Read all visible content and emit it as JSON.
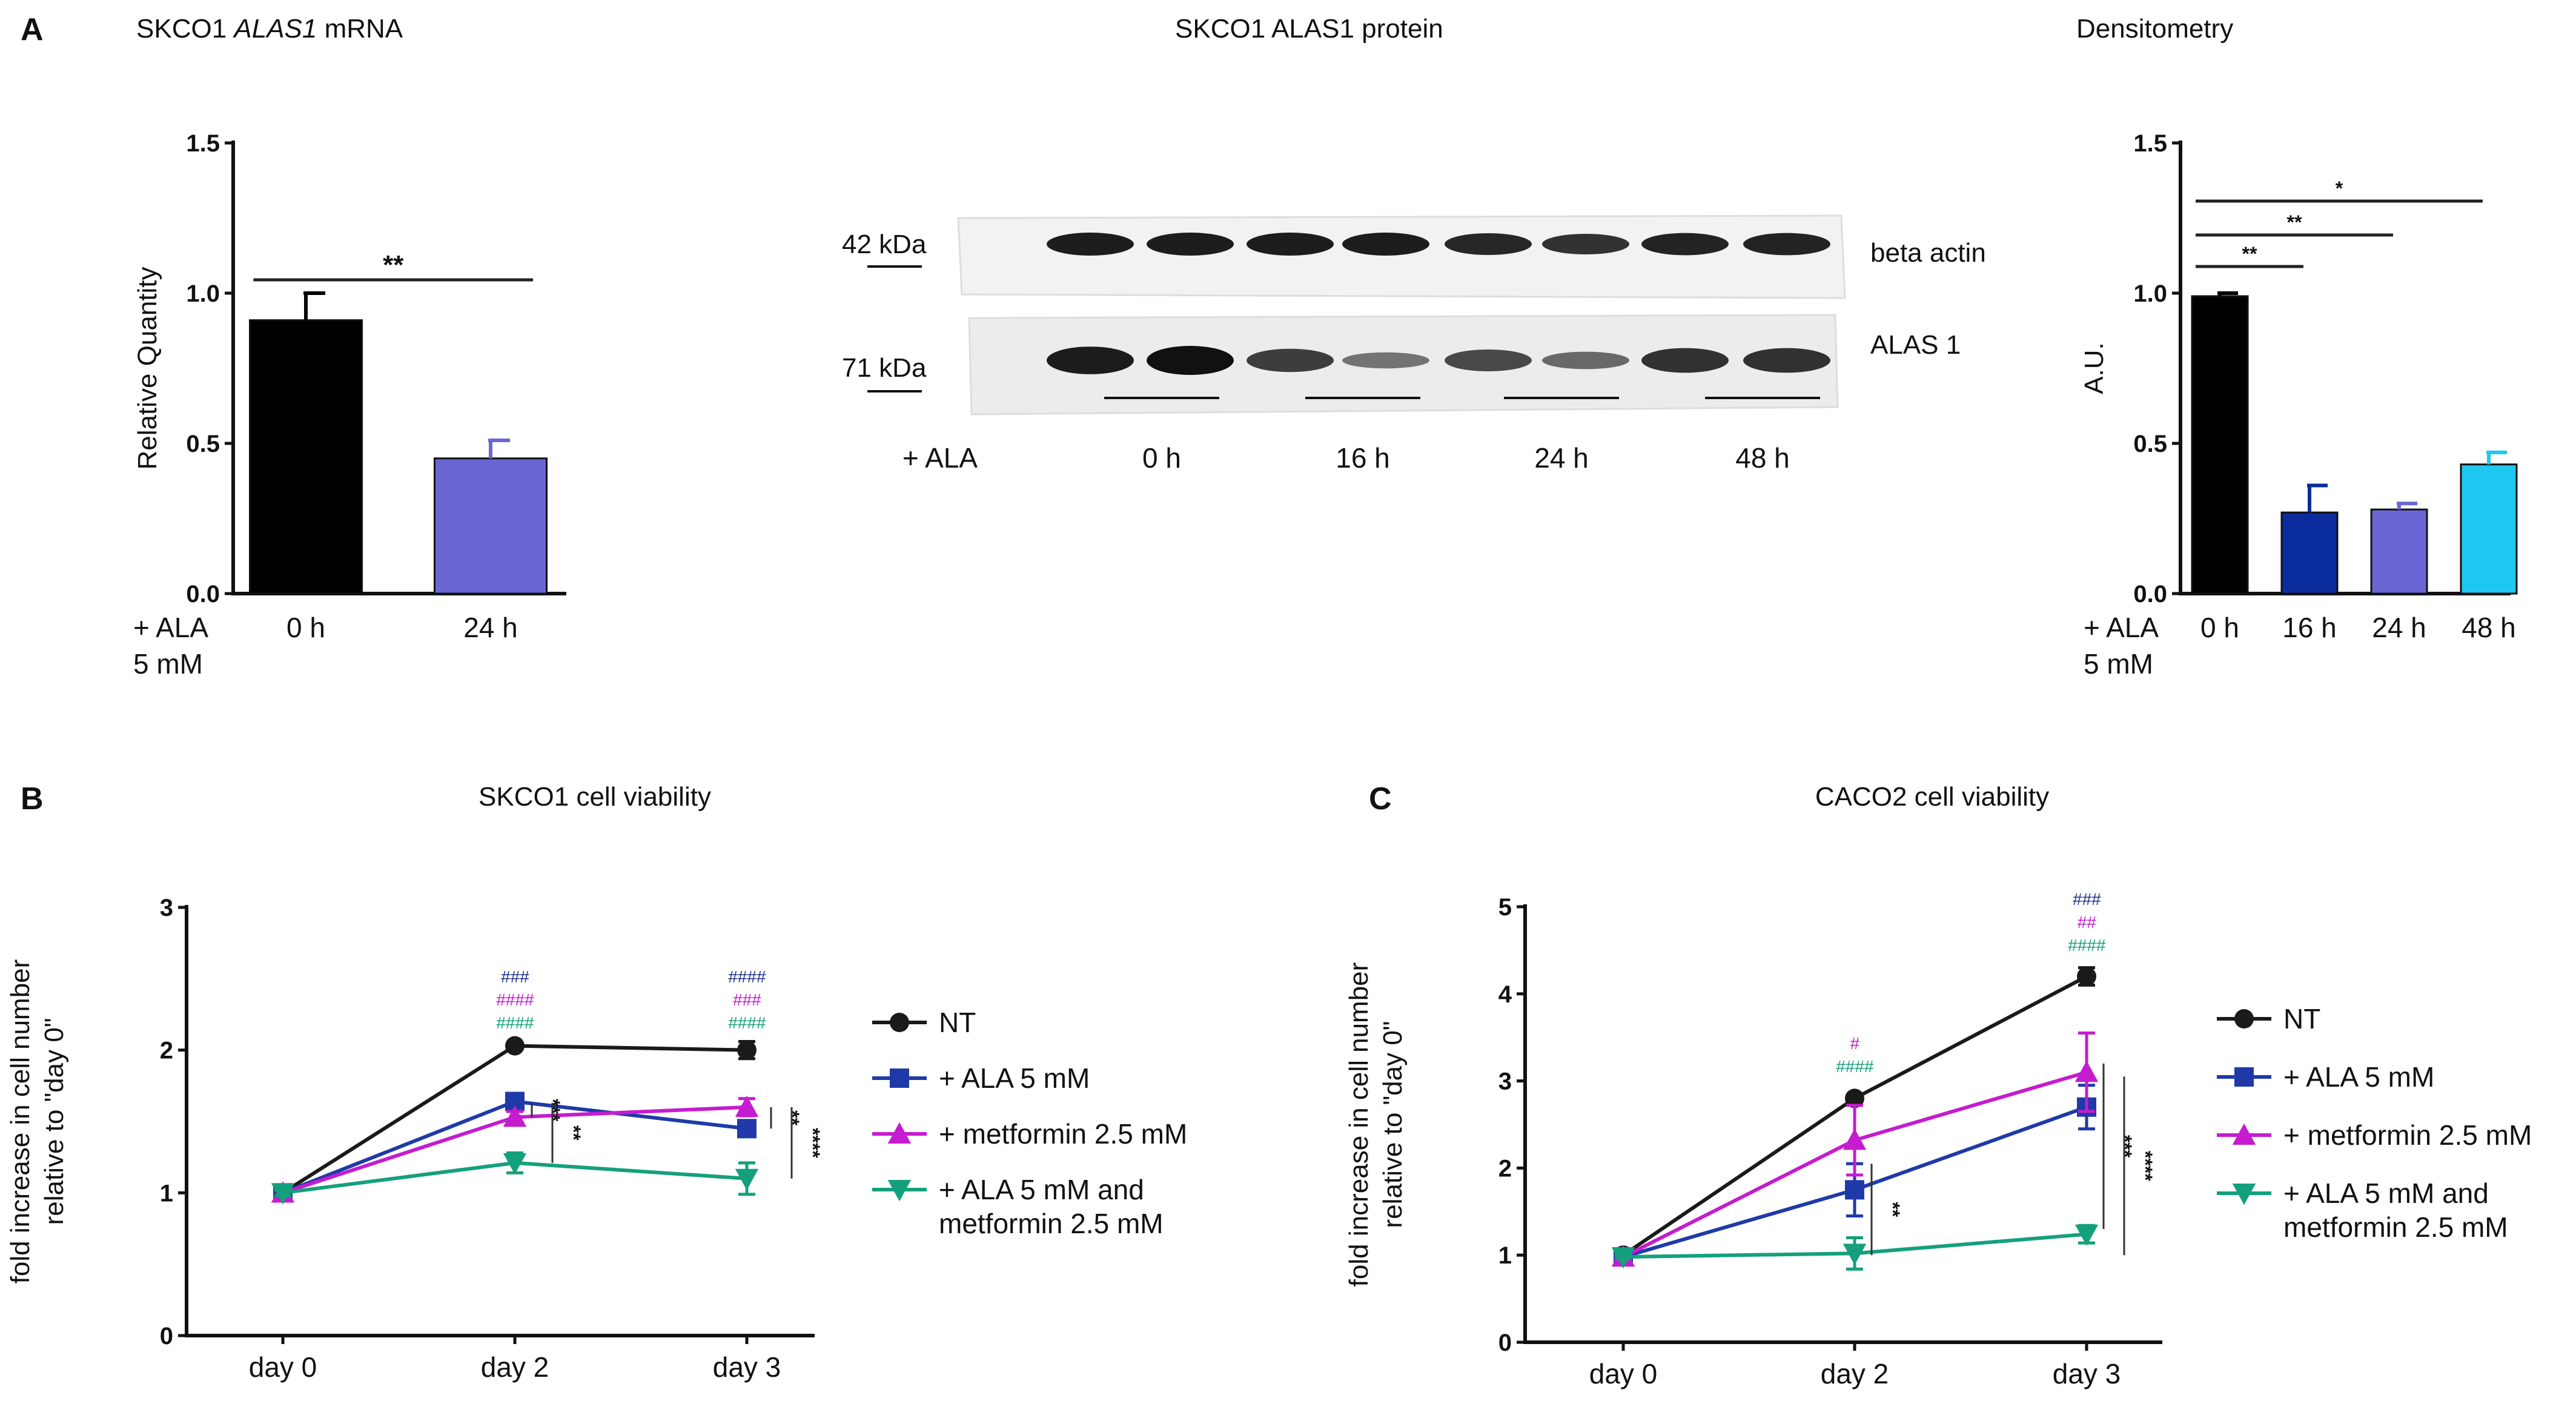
{
  "panels": {
    "A": "A",
    "B": "B",
    "C": "C"
  },
  "chart_data": [
    {
      "id": "A1",
      "type": "bar",
      "title_prefix": "SKCO1 ",
      "title_italic": "ALAS1",
      "title_suffix": " mRNA",
      "ylabel": "Relative Quantity",
      "ylim": [
        0,
        1.5
      ],
      "yticks": [
        "0.0",
        "0.5",
        "1.0",
        "1.5"
      ],
      "row_label": [
        "+ ALA",
        "5 mM"
      ],
      "categories": [
        "0 h",
        "24 h"
      ],
      "values": [
        0.91,
        0.45
      ],
      "errors": [
        0.09,
        0.06
      ],
      "colors": [
        "#000000",
        "#6a67d4"
      ],
      "significance": [
        {
          "pair": [
            0,
            1
          ],
          "label": "**"
        }
      ]
    },
    {
      "id": "A2",
      "type": "blot",
      "title": "SKCO1 ALAS1 protein",
      "markers": [
        "42 kDa",
        "71 kDa"
      ],
      "bands": [
        "beta actin",
        "ALAS 1"
      ],
      "row_label": "+ ALA",
      "lanes": [
        "0 h",
        "16 h",
        "24 h",
        "48 h"
      ],
      "actin_intensity": [
        0.95,
        0.95,
        0.95,
        0.95,
        0.9,
        0.85,
        0.92,
        0.92
      ],
      "alas_intensity": [
        0.95,
        1.0,
        0.8,
        0.55,
        0.75,
        0.6,
        0.85,
        0.85
      ]
    },
    {
      "id": "A3",
      "type": "bar",
      "title": "Densitometry",
      "ylabel": "A.U.",
      "ylim": [
        0,
        1.5
      ],
      "yticks": [
        "0.0",
        "0.5",
        "1.0",
        "1.5"
      ],
      "row_label": [
        "+ ALA",
        "5 mM"
      ],
      "categories": [
        "0 h",
        "16 h",
        "24 h",
        "48 h"
      ],
      "values": [
        0.99,
        0.27,
        0.28,
        0.43
      ],
      "errors": [
        0.01,
        0.09,
        0.02,
        0.04
      ],
      "colors": [
        "#000000",
        "#0a2c9c",
        "#6a67d4",
        "#1ec8f0"
      ],
      "significance": [
        {
          "pair": [
            0,
            1
          ],
          "label": "**"
        },
        {
          "pair": [
            0,
            2
          ],
          "label": "**"
        },
        {
          "pair": [
            0,
            3
          ],
          "label": "*"
        }
      ]
    },
    {
      "id": "B",
      "type": "line",
      "title": "SKCO1 cell viability",
      "ylabel": [
        "fold increase in cell number",
        "relative to \"day 0\""
      ],
      "ylim": [
        0,
        3
      ],
      "yticks": [
        "0",
        "1",
        "2",
        "3"
      ],
      "x": [
        "day 0",
        "day 2",
        "day 3"
      ],
      "series": [
        {
          "name": "NT",
          "values": [
            1.0,
            2.03,
            2.0
          ],
          "errors": [
            0.02,
            0.02,
            0.06
          ],
          "color": "#1a1a1a",
          "marker": "circle"
        },
        {
          "name": "+ ALA 5 mM",
          "values": [
            1.0,
            1.64,
            1.45
          ],
          "errors": [
            0.02,
            0.04,
            0.03
          ],
          "color": "#1f3aa8",
          "marker": "square"
        },
        {
          "name": "+ metformin 2.5 mM",
          "values": [
            1.0,
            1.53,
            1.6
          ],
          "errors": [
            0.02,
            0.04,
            0.06
          ],
          "color": "#c51ccf",
          "marker": "triangle-up"
        },
        {
          "name_lines": [
            "+ ALA 5 mM and",
            "metformin 2.5 mM"
          ],
          "values": [
            1.0,
            1.21,
            1.1
          ],
          "errors": [
            0.02,
            0.07,
            0.11
          ],
          "color": "#14a07c",
          "marker": "triangle-down"
        }
      ],
      "hash_labels": [
        {
          "x_index": 1,
          "lines": [
            "###",
            "####",
            "####"
          ]
        },
        {
          "x_index": 2,
          "lines": [
            "####",
            "###",
            "####"
          ]
        }
      ],
      "stars": [
        {
          "x_index": 1,
          "labels": [
            "***",
            "**"
          ]
        },
        {
          "x_index": 2,
          "labels": [
            "**",
            "****"
          ]
        }
      ]
    },
    {
      "id": "C",
      "type": "line",
      "title": "CACO2 cell viability",
      "ylabel": [
        "fold increase in cell number",
        "relative to \"day 0\""
      ],
      "ylim": [
        0,
        5
      ],
      "yticks": [
        "0",
        "1",
        "2",
        "3",
        "4",
        "5"
      ],
      "x": [
        "day 0",
        "day 2",
        "day 3"
      ],
      "series": [
        {
          "name": "NT",
          "values": [
            1.0,
            2.8,
            4.2
          ],
          "errors": [
            0.02,
            0.03,
            0.1
          ],
          "color": "#1a1a1a",
          "marker": "circle"
        },
        {
          "name": "+ ALA  5 mM",
          "values": [
            0.98,
            1.75,
            2.7
          ],
          "errors": [
            0.02,
            0.3,
            0.25
          ],
          "color": "#1f3aa8",
          "marker": "square"
        },
        {
          "name": "+ metformin 2.5 mM",
          "values": [
            0.98,
            2.32,
            3.1
          ],
          "errors": [
            0.02,
            0.4,
            0.45
          ],
          "color": "#c51ccf",
          "marker": "triangle-up"
        },
        {
          "name_lines": [
            "+ ALA 5 mM and",
            "metformin 2.5 mM"
          ],
          "values": [
            0.98,
            1.02,
            1.24
          ],
          "errors": [
            0.02,
            0.18,
            0.1
          ],
          "color": "#14a07c",
          "marker": "triangle-down"
        }
      ],
      "hash_labels": [
        {
          "x_index": 1,
          "lines": [
            "#",
            "####"
          ]
        },
        {
          "x_index": 2,
          "lines": [
            "###",
            "##",
            "####"
          ]
        }
      ],
      "stars": [
        {
          "x_index": 1,
          "labels": [
            "**"
          ]
        },
        {
          "x_index": 2,
          "labels": [
            "***",
            "****"
          ]
        }
      ]
    }
  ]
}
